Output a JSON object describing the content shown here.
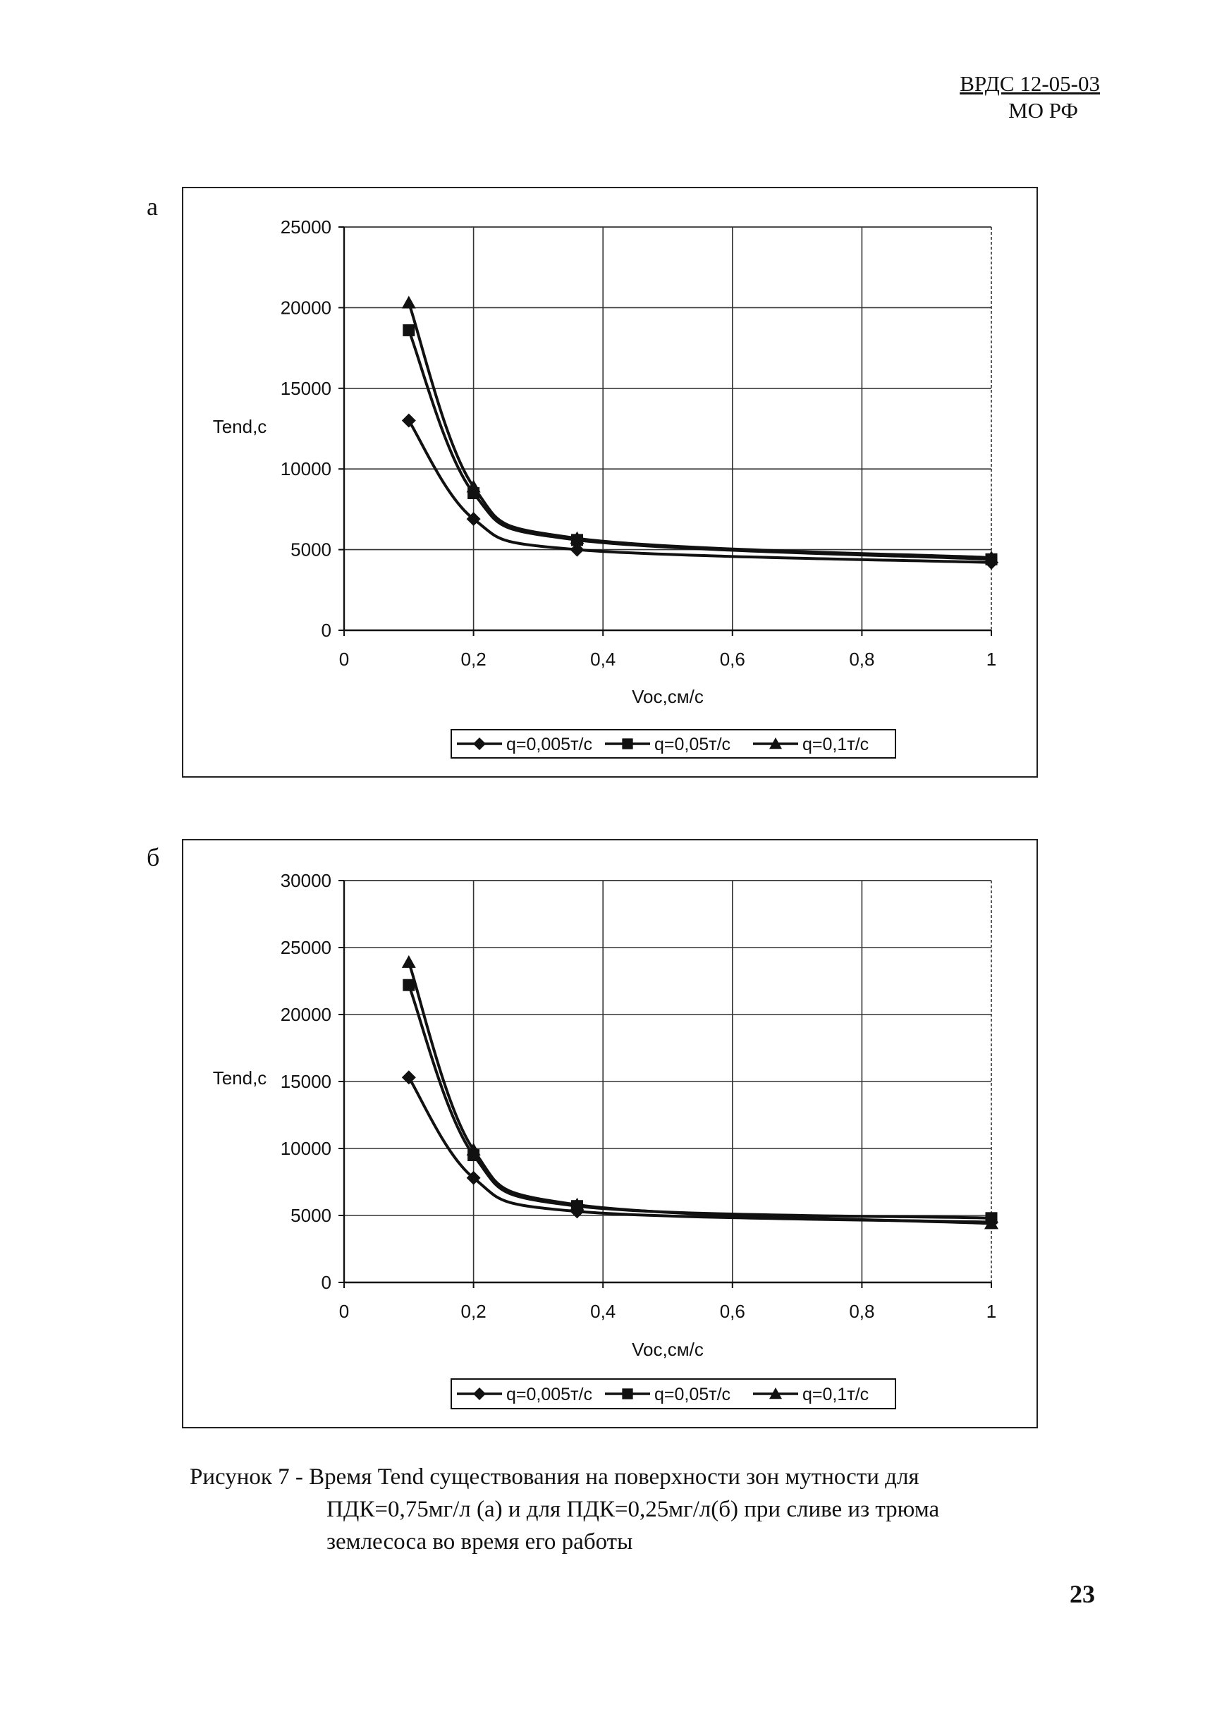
{
  "header": {
    "code": "ВРДС 12-05-03",
    "org": "МО РФ"
  },
  "charts": [
    {
      "panel_label": "а"
    },
    {
      "panel_label": "б"
    }
  ],
  "chart_data": [
    {
      "type": "line",
      "ylabel": "Tend,c",
      "xlabel": "Voc,см/с",
      "xlim": [
        0,
        1
      ],
      "ylim": [
        0,
        25000
      ],
      "xticks": [
        "0",
        "0,2",
        "0,4",
        "0,6",
        "0,8",
        "1"
      ],
      "yticks": [
        "0",
        "5000",
        "10000",
        "15000",
        "20000",
        "25000"
      ],
      "grid": true,
      "legend_position": "bottom",
      "series": [
        {
          "name": "q=0,005т/с",
          "marker": "diamond",
          "x": [
            0.1,
            0.2,
            0.36,
            1.0
          ],
          "y": [
            13000,
            6900,
            5000,
            4200
          ]
        },
        {
          "name": "q=0,05т/с",
          "marker": "square",
          "x": [
            0.1,
            0.2,
            0.36,
            1.0
          ],
          "y": [
            18600,
            8500,
            5600,
            4400
          ]
        },
        {
          "name": "q=0,1т/с",
          "marker": "triangle",
          "x": [
            0.1,
            0.2,
            0.36,
            1.0
          ],
          "y": [
            20300,
            8900,
            5700,
            4500
          ]
        }
      ]
    },
    {
      "type": "line",
      "ylabel": "Tend,c",
      "xlabel": "Voc,см/с",
      "xlim": [
        0,
        1
      ],
      "ylim": [
        0,
        30000
      ],
      "xticks": [
        "0",
        "0,2",
        "0,4",
        "0,6",
        "0,8",
        "1"
      ],
      "yticks": [
        "0",
        "5000",
        "10000",
        "15000",
        "20000",
        "25000",
        "30000"
      ],
      "grid": true,
      "legend_position": "bottom",
      "series": [
        {
          "name": "q=0,005т/с",
          "marker": "diamond",
          "x": [
            0.1,
            0.2,
            0.36,
            1.0
          ],
          "y": [
            15300,
            7800,
            5300,
            4500
          ]
        },
        {
          "name": "q=0,05т/с",
          "marker": "square",
          "x": [
            0.1,
            0.2,
            0.36,
            1.0
          ],
          "y": [
            22200,
            9500,
            5700,
            4800
          ]
        },
        {
          "name": "q=0,1т/с",
          "marker": "triangle",
          "x": [
            0.1,
            0.2,
            0.36,
            1.0
          ],
          "y": [
            23900,
            9900,
            5800,
            4400
          ]
        }
      ]
    }
  ],
  "caption": {
    "line1": "Рисунок 7 - Время Tend существования на поверхности зон мутности для",
    "line2": "ПДК=0,75мг/л (а) и для ПДК=0,25мг/л(б) при сливе из трюма",
    "line3": "землесоса во время его работы"
  },
  "page_number": "23"
}
